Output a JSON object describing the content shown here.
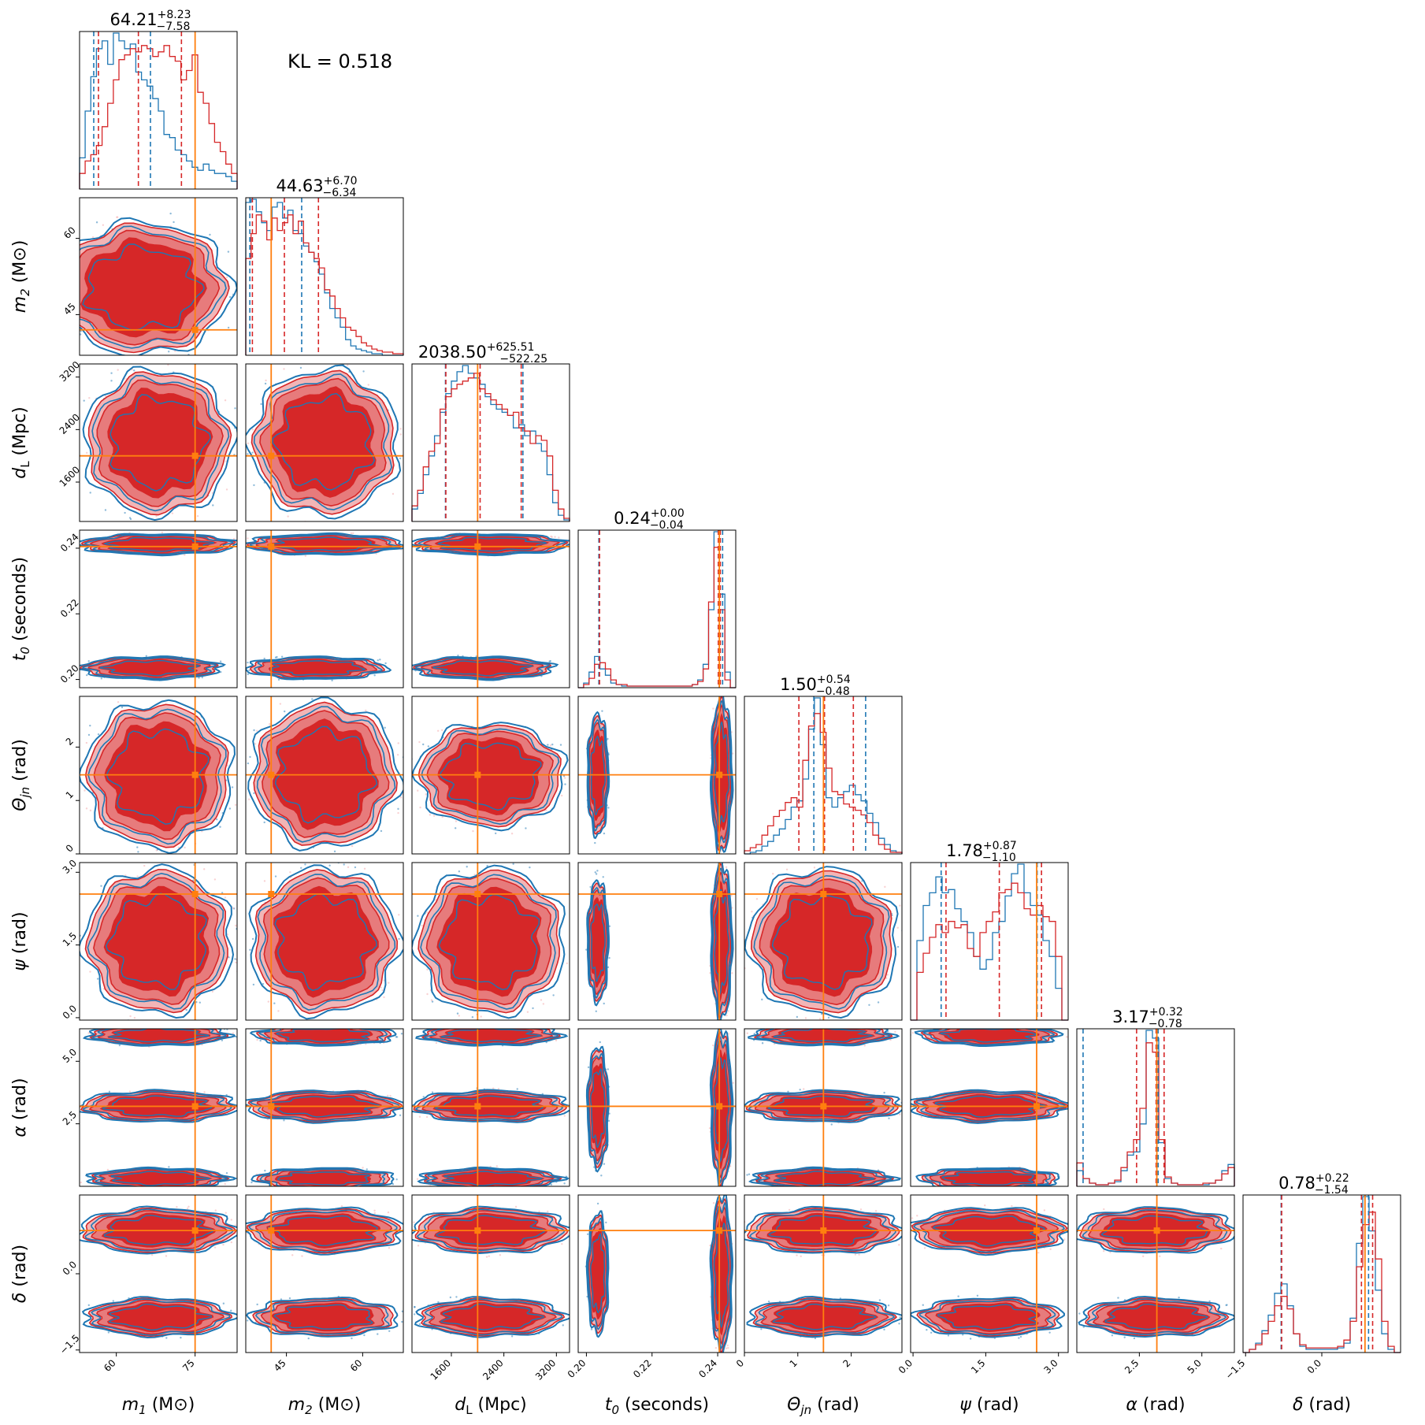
{
  "kl_text": "KL = 0.518",
  "colors": {
    "red": "#d62728",
    "blue": "#1f77b4",
    "orange": "#ff7f0e",
    "red_fill_light": "#f2b5b6",
    "red_fill_mid": "#e77b7c"
  },
  "chart_data": {
    "type": "corner",
    "params": [
      {
        "key": "m1",
        "label": "m_1 (M_⊙)",
        "label_base": "m",
        "label_sub": "1",
        "label_unit": "(M⊙)",
        "range": [
          53,
          83
        ],
        "ticks": [
          60,
          75
        ],
        "tick_labels": [
          "60",
          "75"
        ],
        "truth": 75.0,
        "title_median": "64.21",
        "title_plus": "+8.23",
        "title_minus": "−7.58"
      },
      {
        "key": "m2",
        "label": "m_2 (M_⊙)",
        "label_base": "m",
        "label_sub": "2",
        "label_unit": "(M⊙)",
        "range": [
          37,
          68
        ],
        "ticks": [
          45,
          60
        ],
        "tick_labels": [
          "45",
          "60"
        ],
        "truth": 42.0,
        "title_median": "44.63",
        "title_plus": "+6.70",
        "title_minus": "−6.34"
      },
      {
        "key": "dL",
        "label": "d_L (Mpc)",
        "label_base": "d",
        "label_sub": "L",
        "label_unit": "(Mpc)",
        "range": [
          1000,
          3400
        ],
        "ticks": [
          1600,
          2400,
          3200
        ],
        "tick_labels": [
          "1600",
          "2400",
          "3200"
        ],
        "truth": 2000,
        "title_median": "2038.50",
        "title_plus": "+625.51",
        "title_minus": "−522.25"
      },
      {
        "key": "t0",
        "label": "t_0 (seconds)",
        "label_base": "t",
        "label_sub": "0",
        "label_unit": "(seconds)",
        "range": [
          0.1975,
          0.2455
        ],
        "ticks": [
          0.2,
          0.22,
          0.24
        ],
        "tick_labels": [
          "0.20",
          "0.22",
          "0.24"
        ],
        "truth": 0.2405,
        "title_median": "0.24",
        "title_plus": "+0.00",
        "title_minus": "−0.04"
      },
      {
        "key": "theta_jn",
        "label": "Θ_jn (rad)",
        "label_base": "Θ",
        "label_sub": "jn",
        "label_unit": "(rad)",
        "range": [
          0,
          2.95
        ],
        "ticks": [
          0,
          1,
          2
        ],
        "tick_labels": [
          "0",
          "1",
          "2"
        ],
        "truth": 1.48,
        "title_median": "1.50",
        "title_plus": "+0.54",
        "title_minus": "−0.48"
      },
      {
        "key": "psi",
        "label": "ψ (rad)",
        "label_base": "ψ",
        "label_sub": "",
        "label_unit": "(rad)",
        "range": [
          -0.05,
          3.2
        ],
        "ticks": [
          0.0,
          1.5,
          3.0
        ],
        "tick_labels": [
          "0.0",
          "1.5",
          "3.0"
        ],
        "truth": 2.55,
        "title_median": "1.78",
        "title_plus": "+0.87",
        "title_minus": "−1.10"
      },
      {
        "key": "alpha",
        "label": "α (rad)",
        "label_base": "α",
        "label_sub": "",
        "label_unit": "(rad)",
        "range": [
          0,
          6.3
        ],
        "ticks": [
          2.5,
          5.0
        ],
        "tick_labels": [
          "2.5",
          "5.0"
        ],
        "truth": 3.2,
        "title_median": "3.17",
        "title_plus": "+0.32",
        "title_minus": "−0.78"
      },
      {
        "key": "delta",
        "label": "δ (rad)",
        "label_base": "δ",
        "label_sub": "",
        "label_unit": "(rad)",
        "range": [
          -1.55,
          1.55
        ],
        "ticks": [
          -1.5,
          0.0
        ],
        "tick_labels": [
          "−1.5",
          "0.0"
        ],
        "truth": 0.85,
        "title_median": "0.78",
        "title_plus": "+0.22",
        "title_minus": "−1.54"
      }
    ],
    "series": [
      {
        "name": "",
        "color": "#d62728"
      },
      {
        "name": "",
        "color": "#1f77b4"
      }
    ],
    "marginals": {
      "m1": {
        "red_quantiles": [
          56.6,
          64.2,
          72.4
        ],
        "blue_quantiles": [
          55.7,
          61.5,
          66.5
        ],
        "red": [
          0.1,
          0.18,
          0.22,
          0.28,
          0.4,
          0.55,
          0.7,
          0.83,
          0.86,
          0.9,
          0.88,
          0.92,
          0.9,
          0.85,
          0.88,
          0.92,
          0.85,
          0.82,
          0.7,
          0.76,
          0.86,
          0.62,
          0.55,
          0.42,
          0.3,
          0.24,
          0.16,
          0.1
        ],
        "blue": [
          0.2,
          0.5,
          0.72,
          0.9,
          0.95,
          0.8,
          1.0,
          0.95,
          0.9,
          0.93,
          0.75,
          0.7,
          0.66,
          0.58,
          0.5,
          0.35,
          0.33,
          0.25,
          0.22,
          0.18,
          0.14,
          0.12,
          0.16,
          0.12,
          0.1,
          0.1,
          0.08,
          0.05
        ]
      },
      "m2": {
        "red_quantiles": [
          38.3,
          44.6,
          51.3
        ],
        "blue_quantiles": [
          37.8,
          43.0,
          48.0
        ],
        "red": [
          0.62,
          0.78,
          0.9,
          0.86,
          0.74,
          0.88,
          0.8,
          0.85,
          0.9,
          0.78,
          0.86,
          0.72,
          0.66,
          0.62,
          0.56,
          0.42,
          0.38,
          0.3,
          0.24,
          0.18,
          0.16,
          0.12,
          0.08,
          0.06,
          0.04,
          0.03,
          0.02,
          0.02,
          0.01,
          0.01
        ],
        "blue": [
          0.98,
          1.0,
          0.92,
          0.85,
          0.8,
          0.95,
          0.98,
          0.88,
          0.93,
          0.8,
          0.78,
          0.7,
          0.66,
          0.6,
          0.52,
          0.4,
          0.3,
          0.24,
          0.18,
          0.1,
          0.06,
          0.04,
          0.03,
          0.02,
          0.01,
          0.01,
          0.0,
          0.0,
          0.0,
          0.0
        ]
      },
      "dL": {
        "red_quantiles": [
          1516,
          2038,
          2664
        ],
        "blue_quantiles": [
          1510,
          2020,
          2690
        ],
        "red": [
          0.1,
          0.2,
          0.35,
          0.45,
          0.5,
          0.72,
          0.8,
          0.85,
          0.88,
          0.9,
          0.92,
          0.95,
          0.85,
          0.82,
          0.78,
          0.75,
          0.72,
          0.68,
          0.7,
          0.6,
          0.58,
          0.5,
          0.55,
          0.52,
          0.42,
          0.2,
          0.08,
          0.02
        ],
        "blue": [
          0.08,
          0.18,
          0.3,
          0.42,
          0.55,
          0.7,
          0.82,
          0.9,
          0.96,
          1.0,
          0.95,
          0.92,
          0.88,
          0.8,
          0.75,
          0.72,
          0.7,
          0.68,
          0.6,
          0.62,
          0.55,
          0.58,
          0.5,
          0.45,
          0.3,
          0.12,
          0.04,
          0.01
        ]
      },
      "t0": {
        "red_quantiles": [
          0.204,
          0.2402,
          0.2408
        ],
        "blue_quantiles": [
          0.2038,
          0.2405,
          0.2415
        ],
        "red": [
          0.0,
          0.02,
          0.06,
          0.15,
          0.16,
          0.12,
          0.05,
          0.02,
          0.02,
          0.01,
          0.01,
          0.01,
          0.01,
          0.01,
          0.01,
          0.01,
          0.01,
          0.01,
          0.01,
          0.01,
          0.01,
          0.02,
          0.04,
          0.12,
          0.55,
          0.9,
          0.5,
          0.05,
          0.0
        ],
        "blue": [
          0.0,
          0.03,
          0.1,
          0.2,
          0.12,
          0.08,
          0.03,
          0.02,
          0.01,
          0.01,
          0.01,
          0.01,
          0.01,
          0.01,
          0.01,
          0.01,
          0.01,
          0.01,
          0.01,
          0.01,
          0.01,
          0.02,
          0.05,
          0.15,
          0.5,
          1.0,
          0.6,
          0.1,
          0.0
        ]
      },
      "theta_jn": {
        "red_quantiles": [
          1.02,
          1.5,
          2.04
        ],
        "blue_quantiles": [
          1.3,
          1.48,
          2.27
        ],
        "red": [
          0.02,
          0.04,
          0.06,
          0.12,
          0.18,
          0.24,
          0.28,
          0.33,
          0.36,
          0.3,
          0.6,
          0.82,
          0.9,
          0.78,
          0.55,
          0.4,
          0.38,
          0.32,
          0.3,
          0.28,
          0.25,
          0.2,
          0.12,
          0.06,
          0.03,
          0.01,
          0.01
        ],
        "blue": [
          0.0,
          0.01,
          0.02,
          0.05,
          0.08,
          0.12,
          0.16,
          0.22,
          0.3,
          0.34,
          0.48,
          0.8,
          1.0,
          0.7,
          0.36,
          0.3,
          0.36,
          0.4,
          0.44,
          0.38,
          0.34,
          0.26,
          0.2,
          0.1,
          0.06,
          0.02,
          0.01
        ]
      },
      "psi": {
        "red_quantiles": [
          0.68,
          1.78,
          2.65
        ],
        "blue_quantiles": [
          0.58,
          1.8,
          2.56
        ],
        "red": [
          0.0,
          0.3,
          0.42,
          0.52,
          0.6,
          0.55,
          0.62,
          0.58,
          0.6,
          0.45,
          0.4,
          0.55,
          0.62,
          0.68,
          0.8,
          0.82,
          0.86,
          0.8,
          0.7,
          0.66,
          0.72,
          0.65,
          0.62,
          0.4,
          0.0
        ],
        "blue": [
          0.0,
          0.5,
          0.72,
          0.8,
          0.9,
          0.8,
          0.82,
          0.7,
          0.62,
          0.55,
          0.4,
          0.32,
          0.38,
          0.55,
          0.62,
          0.78,
          0.92,
          0.98,
          0.8,
          0.72,
          0.66,
          0.5,
          0.4,
          0.2,
          0.0
        ]
      },
      "alpha": {
        "red_quantiles": [
          2.39,
          3.17,
          3.49
        ],
        "blue_quantiles": [
          0.25,
          3.15,
          3.25
        ],
        "red": [
          0.15,
          0.05,
          0.02,
          0.01,
          0.01,
          0.02,
          0.04,
          0.12,
          0.22,
          0.3,
          0.5,
          0.92,
          0.86,
          0.3,
          0.06,
          0.02,
          0.01,
          0.01,
          0.01,
          0.01,
          0.02,
          0.02,
          0.04,
          0.08,
          0.12
        ],
        "blue": [
          0.1,
          0.05,
          0.02,
          0.01,
          0.01,
          0.02,
          0.03,
          0.1,
          0.2,
          0.22,
          0.4,
          1.0,
          0.95,
          0.28,
          0.05,
          0.02,
          0.01,
          0.01,
          0.01,
          0.01,
          0.01,
          0.02,
          0.04,
          0.1,
          0.14
        ]
      },
      "delta": {
        "red_quantiles": [
          -0.79,
          0.78,
          1.0
        ],
        "blue_quantiles": [
          -0.8,
          0.85,
          0.92
        ],
        "red": [
          0.0,
          0.02,
          0.05,
          0.12,
          0.2,
          0.3,
          0.36,
          0.28,
          0.12,
          0.05,
          0.03,
          0.03,
          0.03,
          0.03,
          0.03,
          0.04,
          0.08,
          0.2,
          0.55,
          0.82,
          0.9,
          0.6,
          0.2,
          0.04,
          0.0
        ],
        "blue": [
          0.0,
          0.02,
          0.06,
          0.14,
          0.24,
          0.38,
          0.44,
          0.3,
          0.12,
          0.04,
          0.02,
          0.02,
          0.02,
          0.02,
          0.02,
          0.03,
          0.06,
          0.22,
          0.7,
          1.0,
          0.78,
          0.4,
          0.12,
          0.02,
          0.0
        ]
      }
    }
  }
}
